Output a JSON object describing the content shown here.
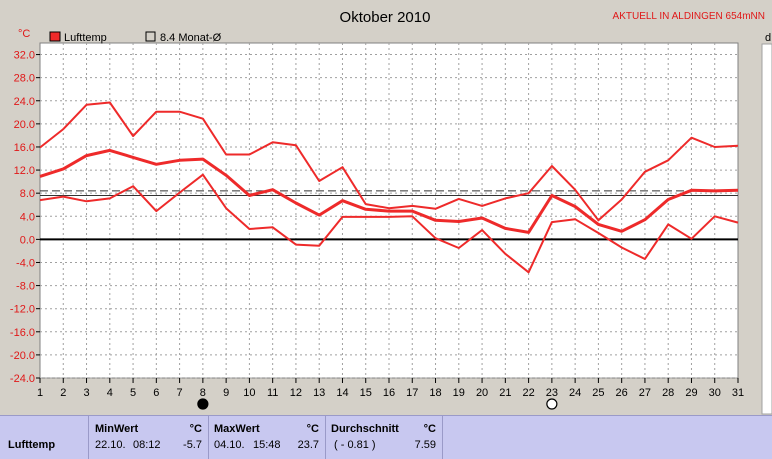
{
  "header": {
    "unit_label": "°C",
    "station": "AKTUELL IN ALDINGEN 654mNN"
  },
  "colors": {
    "series": "#ee2a2a",
    "reference": "#000000",
    "background": "#d4d0c8",
    "table": "#c8c8f0"
  },
  "chart_data": {
    "type": "line",
    "title": "Oktober 2010",
    "xlabel": "",
    "ylabel": "°C",
    "xlim": [
      1,
      31
    ],
    "ylim": [
      -24,
      34
    ],
    "yticks": [
      32.0,
      28.0,
      24.0,
      20.0,
      16.0,
      12.0,
      8.0,
      4.0,
      0.0,
      -4.0,
      -8.0,
      -12.0,
      -16.0,
      -20.0,
      -24.0
    ],
    "ytick_labels": [
      "32.0",
      "28.0",
      "24.0",
      "20.0",
      "16.0",
      "12.0",
      "8.0",
      "4.0",
      "0.0",
      "-4.0",
      "-8.0",
      "-12.0",
      "-16.0",
      "-20.0",
      "-24.0"
    ],
    "x": [
      1,
      2,
      3,
      4,
      5,
      6,
      7,
      8,
      9,
      10,
      11,
      12,
      13,
      14,
      15,
      16,
      17,
      18,
      19,
      20,
      21,
      22,
      23,
      24,
      25,
      26,
      27,
      28,
      29,
      30,
      31
    ],
    "x_labels": [
      "1",
      "2",
      "3",
      "4",
      "5",
      "6",
      "7",
      "8",
      "9",
      "10",
      "11",
      "12",
      "13",
      "14",
      "15",
      "16",
      "17",
      "18",
      "19",
      "20",
      "21",
      "22",
      "23",
      "24",
      "25",
      "26",
      "27",
      "28",
      "29",
      "30",
      "31"
    ],
    "grid": true,
    "legend": "top-left",
    "legend_entries": [
      {
        "label": "Lufttemp",
        "marker": "filled"
      },
      {
        "label": "8.4 Monat-Ø",
        "marker": "outline"
      }
    ],
    "series": [
      {
        "role": "max",
        "values": [
          15.9,
          19.1,
          23.3,
          23.7,
          17.9,
          22.1,
          22.1,
          20.9,
          14.7,
          14.7,
          16.8,
          16.3,
          10.1,
          12.5,
          6.1,
          5.4,
          5.8,
          5.3,
          7.0,
          5.8,
          7.1,
          8.0,
          12.7,
          8.6,
          3.3,
          6.9,
          11.7,
          13.7,
          17.6,
          16.0,
          16.2
        ]
      },
      {
        "role": "avg",
        "values": [
          10.9,
          12.2,
          14.5,
          15.4,
          14.2,
          13.0,
          13.7,
          13.9,
          11.1,
          7.6,
          8.6,
          6.3,
          4.2,
          6.7,
          5.2,
          4.9,
          4.9,
          3.3,
          3.1,
          3.7,
          1.9,
          1.2,
          7.6,
          5.7,
          2.6,
          1.4,
          3.4,
          6.9,
          8.5,
          8.4,
          8.5
        ]
      },
      {
        "role": "min",
        "values": [
          6.8,
          7.4,
          6.6,
          7.1,
          9.2,
          4.9,
          8.1,
          11.2,
          5.4,
          1.8,
          2.1,
          -0.9,
          -1.1,
          3.9,
          3.9,
          3.9,
          4.0,
          0.2,
          -1.5,
          1.6,
          -2.5,
          -5.7,
          3.0,
          3.5,
          1.1,
          -1.4,
          -3.4,
          2.6,
          0.1,
          4.0,
          2.9
        ]
      }
    ],
    "reference_lines": [
      {
        "value": 8.4,
        "style": "dashed"
      },
      {
        "value": 7.59,
        "style": "solid"
      }
    ],
    "moon_markers": [
      {
        "day": 8,
        "phase": "new"
      },
      {
        "day": 23,
        "phase": "full"
      }
    ]
  },
  "table": {
    "row_label": "Lufttemp",
    "min": {
      "header": "MinWert",
      "unit": "°C",
      "date": "22.10.",
      "time": "08:12",
      "value": "-5.7"
    },
    "max": {
      "header": "MaxWert",
      "unit": "°C",
      "date": "04.10.",
      "time": "15:48",
      "value": "23.7"
    },
    "avg": {
      "header": "Durchschnitt",
      "unit": "°C",
      "extra": "( - 0.81 )",
      "value": "7.59"
    }
  }
}
